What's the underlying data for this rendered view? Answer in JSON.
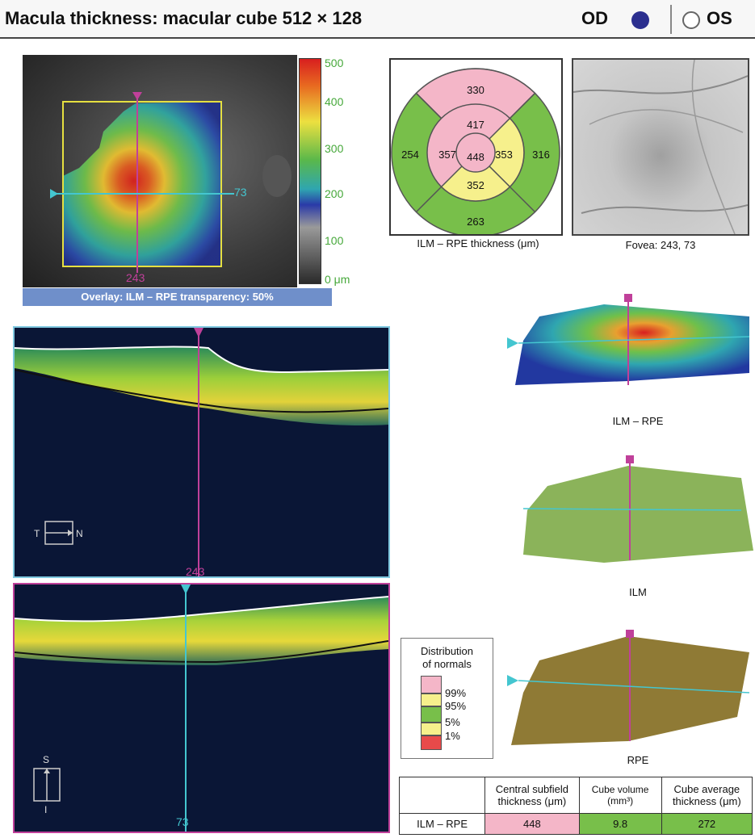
{
  "header": {
    "title": "Macula thickness: macular cube 512 × 128",
    "od_label": "OD",
    "os_label": "OS",
    "od_color": "#2b2f8f"
  },
  "fundus_map": {
    "overlay_bar": "Overlay: ILM – RPE transparency: 50%",
    "horizontal_marker_value": "73",
    "vertical_marker_value": "243",
    "scale_ticks": [
      "500",
      "400",
      "300",
      "200",
      "100",
      "0 μm"
    ]
  },
  "etdrs_grid": {
    "caption": "ILM – RPE thickness (μm)",
    "outer_superior": "330",
    "outer_temporal": "254",
    "outer_nasal": "316",
    "outer_inferior": "263",
    "inner_superior": "417",
    "inner_temporal": "357",
    "inner_nasal": "353",
    "inner_inferior": "352",
    "center": "448"
  },
  "fovea_image": {
    "caption": "Fovea: 243, 73"
  },
  "bscan_top": {
    "marker_value": "243",
    "left_label": "T",
    "right_label": "N"
  },
  "bscan_bottom": {
    "marker_value": "73",
    "top_label": "S",
    "bottom_label": "I"
  },
  "surfaces": [
    {
      "caption": "ILM – RPE"
    },
    {
      "caption": "ILM"
    },
    {
      "caption": "RPE"
    }
  ],
  "legend": {
    "title_line1": "Distribution",
    "title_line2": "of normals",
    "entries": [
      {
        "label": "99%",
        "color": "#f4b6c8"
      },
      {
        "label": "95%",
        "color": "#f6f08c"
      },
      {
        "label": "5%",
        "color": "#78bf4a"
      },
      {
        "label": "1%",
        "color": "#e84a4a"
      }
    ]
  },
  "results_table": {
    "col1_line1": "Central subfield",
    "col1_line2": "thickness (μm)",
    "col2_line1": "Cube volume",
    "col2_line2": "(mm³)",
    "col3_line1": "Cube average",
    "col3_line2": "thickness (μm)",
    "row_label": "ILM – RPE",
    "csf_value": "448",
    "volume_value": "9.8",
    "average_value": "272"
  },
  "colors": {
    "pink": "#f4b6c8",
    "yellow": "#f6f08c",
    "green": "#78bf4a",
    "magenta": "#c0409a",
    "cyan": "#44c6d0",
    "overlay_bar": "#6f8fca"
  }
}
